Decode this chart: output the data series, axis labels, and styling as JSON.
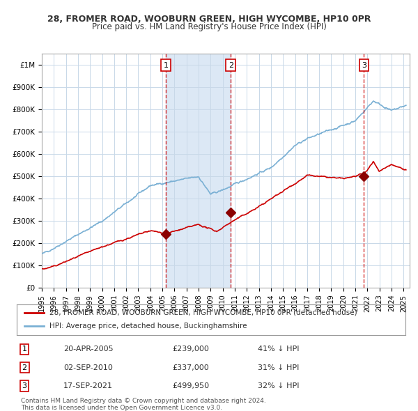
{
  "title_line1": "28, FROMER ROAD, WOOBURN GREEN, HIGH WYCOMBE, HP10 0PR",
  "title_line2": "Price paid vs. HM Land Registry's House Price Index (HPI)",
  "ylabel": "",
  "xlabel": "",
  "hpi_color": "#7ab0d4",
  "price_color": "#cc0000",
  "marker_color": "#8b0000",
  "background_color": "#ffffff",
  "grid_color": "#c8d8e8",
  "shade_color": "#dce8f5",
  "transactions": [
    {
      "num": 1,
      "date": "20-APR-2005",
      "year_float": 2005.3,
      "price": 239000,
      "pct": "41% ↓ HPI"
    },
    {
      "num": 2,
      "date": "02-SEP-2010",
      "year_float": 2010.67,
      "price": 337000,
      "pct": "31% ↓ HPI"
    },
    {
      "num": 3,
      "date": "17-SEP-2021",
      "year_float": 2021.71,
      "price": 499950,
      "pct": "32% ↓ HPI"
    }
  ],
  "legend_line1": "28, FROMER ROAD, WOOBURN GREEN, HIGH WYCOMBE, HP10 0PR (detached house)",
  "legend_line2": "HPI: Average price, detached house, Buckinghamshire",
  "footnote1": "Contains HM Land Registry data © Crown copyright and database right 2024.",
  "footnote2": "This data is licensed under the Open Government Licence v3.0.",
  "ylim": [
    0,
    1050000
  ],
  "yticks": [
    0,
    100000,
    200000,
    300000,
    400000,
    500000,
    600000,
    700000,
    800000,
    900000,
    1000000
  ],
  "xlim_start": 1995.0,
  "xlim_end": 2025.5
}
